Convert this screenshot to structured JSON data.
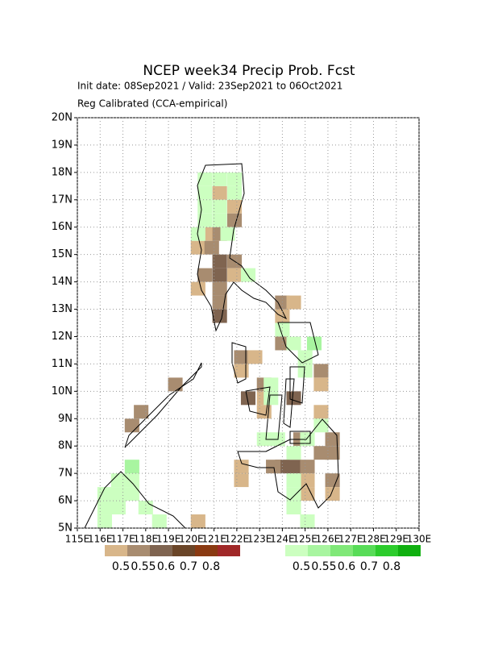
{
  "chart_data": {
    "type": "gridmap",
    "title": "NCEP week34 Precip Prob. Fcst",
    "subtitle": "Init date: 08Sep2021 / Valid: 23Sep2021 to 06Oct2021",
    "note": "Reg Calibrated (CCA-empirical)",
    "xlim": [
      115,
      130
    ],
    "ylim": [
      5,
      20
    ],
    "xticks": [
      {
        "value": 115,
        "label": "115E"
      },
      {
        "value": 116,
        "label": "116E"
      },
      {
        "value": 117,
        "label": "117E"
      },
      {
        "value": 118,
        "label": "118E"
      },
      {
        "value": 119,
        "label": "119E"
      },
      {
        "value": 120,
        "label": "120E"
      },
      {
        "value": 121,
        "label": "121E"
      },
      {
        "value": 122,
        "label": "122E"
      },
      {
        "value": 123,
        "label": "123E"
      },
      {
        "value": 124,
        "label": "124E"
      },
      {
        "value": 125,
        "label": "125E"
      },
      {
        "value": 126,
        "label": "126E"
      },
      {
        "value": 127,
        "label": "127E"
      },
      {
        "value": 128,
        "label": "128E"
      },
      {
        "value": 129,
        "label": "129E"
      },
      {
        "value": 130,
        "label": "130E"
      }
    ],
    "yticks": [
      {
        "value": 5,
        "label": "5N"
      },
      {
        "value": 6,
        "label": "6N"
      },
      {
        "value": 7,
        "label": "7N"
      },
      {
        "value": 8,
        "label": "8N"
      },
      {
        "value": 9,
        "label": "9N"
      },
      {
        "value": 10,
        "label": "10N"
      },
      {
        "value": 11,
        "label": "11N"
      },
      {
        "value": 12,
        "label": "12N"
      },
      {
        "value": 13,
        "label": "13N"
      },
      {
        "value": 14,
        "label": "14N"
      },
      {
        "value": 15,
        "label": "15N"
      },
      {
        "value": 16,
        "label": "16N"
      },
      {
        "value": 17,
        "label": "17N"
      },
      {
        "value": 18,
        "label": "18N"
      },
      {
        "value": 19,
        "label": "19N"
      },
      {
        "value": 20,
        "label": "20N"
      }
    ],
    "grid": true,
    "dry_levels": [
      0.5,
      0.55,
      0.6,
      0.7,
      0.8
    ],
    "dry_colors": [
      "#d8b68a",
      "#a88c70",
      "#7f6450",
      "#6a4528",
      "#8a3a12",
      "#a02828"
    ],
    "wet_levels": [
      0.5,
      0.55,
      0.6,
      0.7,
      0.8
    ],
    "wet_colors": [
      "#ccffc0",
      "#a8f5a0",
      "#80e878",
      "#58dc58",
      "#2ccc2c",
      "#10b010"
    ],
    "dry_cells": [
      [
        121.25,
        17.25,
        0.52
      ],
      [
        121.9,
        16.75,
        0.52
      ],
      [
        121.9,
        16.25,
        0.57
      ],
      [
        120.9,
        15.75,
        0.52
      ],
      [
        121.25,
        15.75,
        0.57
      ],
      [
        120.3,
        15.25,
        0.52
      ],
      [
        120.9,
        15.25,
        0.57
      ],
      [
        121.25,
        14.75,
        0.65
      ],
      [
        121.9,
        14.75,
        0.57
      ],
      [
        120.6,
        14.25,
        0.57
      ],
      [
        121.25,
        14.25,
        0.65
      ],
      [
        121.9,
        14.25,
        0.52
      ],
      [
        120.3,
        13.75,
        0.52
      ],
      [
        121.25,
        13.75,
        0.57
      ],
      [
        121.25,
        13.25,
        0.57
      ],
      [
        121.25,
        12.75,
        0.65
      ],
      [
        124.0,
        13.25,
        0.57
      ],
      [
        124.5,
        13.25,
        0.52
      ],
      [
        124.0,
        12.75,
        0.52
      ],
      [
        124.0,
        11.75,
        0.57
      ],
      [
        122.2,
        11.25,
        0.57
      ],
      [
        122.8,
        11.25,
        0.52
      ],
      [
        122.2,
        10.75,
        0.52
      ],
      [
        125.7,
        10.75,
        0.57
      ],
      [
        125.7,
        10.25,
        0.52
      ],
      [
        123.2,
        10.25,
        0.57
      ],
      [
        122.5,
        9.75,
        0.65
      ],
      [
        123.2,
        9.75,
        0.52
      ],
      [
        124.5,
        9.75,
        0.65
      ],
      [
        123.2,
        9.25,
        0.52
      ],
      [
        125.7,
        9.25,
        0.52
      ],
      [
        119.3,
        10.25,
        0.57
      ],
      [
        117.8,
        9.25,
        0.57
      ],
      [
        117.4,
        8.75,
        0.57
      ],
      [
        124.8,
        8.25,
        0.57
      ],
      [
        126.2,
        8.25,
        0.57
      ],
      [
        125.7,
        7.75,
        0.57
      ],
      [
        126.2,
        7.75,
        0.57
      ],
      [
        124.0,
        7.25,
        0.65
      ],
      [
        124.5,
        7.25,
        0.65
      ],
      [
        125.1,
        7.25,
        0.57
      ],
      [
        122.2,
        7.25,
        0.52
      ],
      [
        122.2,
        6.75,
        0.52
      ],
      [
        126.2,
        6.75,
        0.57
      ],
      [
        125.1,
        6.75,
        0.52
      ],
      [
        125.1,
        6.25,
        0.52
      ],
      [
        126.2,
        6.25,
        0.52
      ],
      [
        120.3,
        5.25,
        0.52
      ],
      [
        123.6,
        7.25,
        0.57
      ]
    ],
    "wet_cells": [
      [
        120.6,
        17.75,
        0.52
      ],
      [
        121.25,
        17.75,
        0.52
      ],
      [
        121.9,
        17.75,
        0.52
      ],
      [
        120.6,
        17.25,
        0.52
      ],
      [
        121.9,
        17.25,
        0.52
      ],
      [
        120.6,
        16.75,
        0.52
      ],
      [
        121.25,
        16.75,
        0.52
      ],
      [
        120.6,
        16.25,
        0.52
      ],
      [
        121.25,
        16.25,
        0.52
      ],
      [
        120.3,
        15.75,
        0.52
      ],
      [
        121.6,
        15.75,
        0.52
      ],
      [
        122.5,
        14.25,
        0.52
      ],
      [
        124.5,
        11.75,
        0.52
      ],
      [
        125.0,
        11.25,
        0.52
      ],
      [
        125.0,
        10.75,
        0.52
      ],
      [
        123.5,
        10.25,
        0.52
      ],
      [
        123.5,
        9.75,
        0.52
      ],
      [
        123.2,
        8.25,
        0.52
      ],
      [
        123.8,
        8.25,
        0.52
      ],
      [
        124.5,
        7.75,
        0.52
      ],
      [
        125.1,
        8.25,
        0.52
      ],
      [
        125.7,
        8.75,
        0.52
      ],
      [
        124.5,
        6.75,
        0.52
      ],
      [
        124.5,
        6.25,
        0.52
      ],
      [
        124.5,
        5.75,
        0.52
      ],
      [
        125.1,
        5.25,
        0.52
      ],
      [
        116.2,
        5.25,
        0.52
      ],
      [
        116.2,
        5.75,
        0.52
      ],
      [
        116.2,
        6.25,
        0.52
      ],
      [
        116.8,
        5.75,
        0.52
      ],
      [
        116.8,
        6.25,
        0.52
      ],
      [
        116.8,
        6.75,
        0.52
      ],
      [
        117.4,
        6.25,
        0.52
      ],
      [
        117.4,
        6.75,
        0.52
      ],
      [
        117.4,
        7.25,
        0.57
      ],
      [
        118.0,
        5.75,
        0.52
      ],
      [
        118.6,
        5.25,
        0.52
      ],
      [
        125.4,
        11.75,
        0.57
      ],
      [
        124.0,
        12.25,
        0.52
      ]
    ]
  }
}
